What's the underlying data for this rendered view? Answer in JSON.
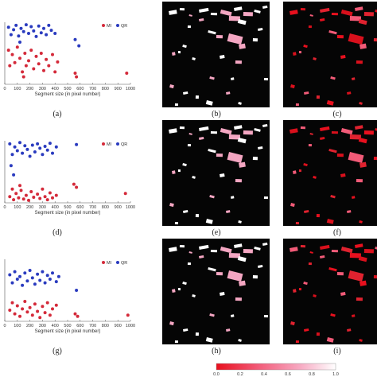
{
  "captions": [
    "(a)",
    "(b)",
    "(c)",
    "(d)",
    "(e)",
    "(f)",
    "(g)",
    "(h)",
    "(i)"
  ],
  "legend": {
    "mi": "MI",
    "qr": "QR"
  },
  "colors": {
    "mi": "#d42a3a",
    "qr": "#2a3bbf",
    "map_bg": "#050505"
  },
  "colorbar": {
    "ticks": [
      "0.0",
      "0.2",
      "0.4",
      "0.6",
      "0.8",
      "1.0"
    ],
    "colors": [
      "#e8101e",
      "#f25b78",
      "#f7a9c2",
      "#ffffff"
    ]
  },
  "chart_data": [
    {
      "type": "scatter",
      "xlabel": "Segment size (in pixel number)",
      "xticks": [
        "0",
        "100",
        "200",
        "300",
        "400",
        "500",
        "600",
        "700",
        "800",
        "900",
        "1000"
      ],
      "xlim": [
        0,
        1000
      ],
      "ylim": [
        0,
        1
      ],
      "series": [
        {
          "name": "MI",
          "points": [
            [
              30,
              0.55
            ],
            [
              60,
              0.48
            ],
            [
              80,
              0.35
            ],
            [
              100,
              0.6
            ],
            [
              120,
              0.42
            ],
            [
              140,
              0.2
            ],
            [
              160,
              0.5
            ],
            [
              170,
              0.3
            ],
            [
              190,
              0.38
            ],
            [
              210,
              0.55
            ],
            [
              230,
              0.25
            ],
            [
              250,
              0.45
            ],
            [
              270,
              0.33
            ],
            [
              290,
              0.5
            ],
            [
              310,
              0.22
            ],
            [
              330,
              0.4
            ],
            [
              350,
              0.3
            ],
            [
              380,
              0.48
            ],
            [
              400,
              0.2
            ],
            [
              420,
              0.36
            ],
            [
              560,
              0.18
            ],
            [
              570,
              0.12
            ],
            [
              970,
              0.18
            ],
            [
              40,
              0.3
            ],
            [
              150,
              0.12
            ]
          ]
        },
        {
          "name": "QR",
          "points": [
            [
              30,
              0.92
            ],
            [
              50,
              0.8
            ],
            [
              70,
              0.88
            ],
            [
              90,
              0.95
            ],
            [
              110,
              0.78
            ],
            [
              130,
              0.9
            ],
            [
              150,
              0.85
            ],
            [
              170,
              0.96
            ],
            [
              190,
              0.82
            ],
            [
              210,
              0.93
            ],
            [
              230,
              0.86
            ],
            [
              250,
              0.77
            ],
            [
              270,
              0.94
            ],
            [
              290,
              0.83
            ],
            [
              310,
              0.9
            ],
            [
              330,
              0.8
            ],
            [
              350,
              0.95
            ],
            [
              370,
              0.87
            ],
            [
              400,
              0.82
            ],
            [
              590,
              0.62
            ],
            [
              560,
              0.72
            ],
            [
              120,
              0.68
            ]
          ]
        }
      ]
    },
    {
      "type": "scatter",
      "xlabel": "Segment size (in pixel number)",
      "xticks": [
        "0",
        "100",
        "200",
        "300",
        "400",
        "500",
        "600",
        "700",
        "800",
        "900",
        "1000"
      ],
      "xlim": [
        0,
        1000
      ],
      "ylim": [
        0,
        1
      ],
      "series": [
        {
          "name": "MI",
          "points": [
            [
              40,
              0.1
            ],
            [
              70,
              0.05
            ],
            [
              90,
              0.15
            ],
            [
              110,
              0.08
            ],
            [
              130,
              0.2
            ],
            [
              150,
              0.06
            ],
            [
              170,
              0.12
            ],
            [
              190,
              0.04
            ],
            [
              210,
              0.18
            ],
            [
              230,
              0.09
            ],
            [
              260,
              0.14
            ],
            [
              280,
              0.07
            ],
            [
              300,
              0.22
            ],
            [
              320,
              0.1
            ],
            [
              340,
              0.05
            ],
            [
              360,
              0.16
            ],
            [
              380,
              0.08
            ],
            [
              410,
              0.12
            ],
            [
              550,
              0.3
            ],
            [
              570,
              0.25
            ],
            [
              960,
              0.15
            ],
            [
              120,
              0.28
            ],
            [
              60,
              0.22
            ]
          ]
        },
        {
          "name": "QR",
          "points": [
            [
              40,
              0.95
            ],
            [
              60,
              0.78
            ],
            [
              80,
              0.9
            ],
            [
              100,
              0.84
            ],
            [
              120,
              0.97
            ],
            [
              140,
              0.8
            ],
            [
              160,
              0.92
            ],
            [
              180,
              0.86
            ],
            [
              200,
              0.75
            ],
            [
              220,
              0.93
            ],
            [
              240,
              0.82
            ],
            [
              260,
              0.95
            ],
            [
              280,
              0.88
            ],
            [
              300,
              0.78
            ],
            [
              320,
              0.91
            ],
            [
              340,
              0.85
            ],
            [
              360,
              0.96
            ],
            [
              380,
              0.8
            ],
            [
              410,
              0.9
            ],
            [
              570,
              0.94
            ],
            [
              50,
              0.6
            ],
            [
              70,
              0.45
            ]
          ]
        }
      ]
    },
    {
      "type": "scatter",
      "xlabel": "Segment size (in pixel number)",
      "xticks": [
        "0",
        "100",
        "200",
        "300",
        "400",
        "500",
        "600",
        "700",
        "800",
        "900",
        "1000"
      ],
      "xlim": [
        0,
        1000
      ],
      "ylim": [
        0,
        1
      ],
      "series": [
        {
          "name": "MI",
          "points": [
            [
              40,
              0.18
            ],
            [
              60,
              0.3
            ],
            [
              80,
              0.12
            ],
            [
              100,
              0.25
            ],
            [
              120,
              0.08
            ],
            [
              140,
              0.2
            ],
            [
              160,
              0.32
            ],
            [
              180,
              0.15
            ],
            [
              200,
              0.22
            ],
            [
              220,
              0.1
            ],
            [
              240,
              0.28
            ],
            [
              260,
              0.16
            ],
            [
              280,
              0.06
            ],
            [
              300,
              0.24
            ],
            [
              320,
              0.14
            ],
            [
              340,
              0.3
            ],
            [
              360,
              0.1
            ],
            [
              380,
              0.2
            ],
            [
              410,
              0.26
            ],
            [
              560,
              0.12
            ],
            [
              580,
              0.08
            ],
            [
              980,
              0.1
            ]
          ]
        },
        {
          "name": "QR",
          "points": [
            [
              40,
              0.75
            ],
            [
              60,
              0.62
            ],
            [
              80,
              0.8
            ],
            [
              100,
              0.68
            ],
            [
              120,
              0.72
            ],
            [
              140,
              0.58
            ],
            [
              160,
              0.78
            ],
            [
              180,
              0.65
            ],
            [
              200,
              0.82
            ],
            [
              220,
              0.7
            ],
            [
              240,
              0.6
            ],
            [
              260,
              0.76
            ],
            [
              280,
              0.66
            ],
            [
              300,
              0.8
            ],
            [
              320,
              0.62
            ],
            [
              340,
              0.74
            ],
            [
              360,
              0.68
            ],
            [
              380,
              0.78
            ],
            [
              410,
              0.64
            ],
            [
              570,
              0.5
            ],
            [
              430,
              0.72
            ]
          ]
        }
      ]
    }
  ],
  "maps": {
    "segments": [
      [
        212,
        14,
        10,
        5,
        "w"
      ],
      [
        226,
        10,
        6,
        3,
        "w"
      ],
      [
        238,
        18,
        4,
        2,
        "p"
      ],
      [
        250,
        12,
        12,
        4,
        "w"
      ],
      [
        265,
        16,
        8,
        3,
        "w"
      ],
      [
        278,
        12,
        14,
        5,
        "p"
      ],
      [
        294,
        10,
        10,
        4,
        "w"
      ],
      [
        306,
        15,
        12,
        5,
        "p"
      ],
      [
        320,
        12,
        8,
        3,
        "w"
      ],
      [
        330,
        8,
        6,
        3,
        "w"
      ],
      [
        288,
        20,
        14,
        6,
        "p"
      ],
      [
        300,
        24,
        10,
        5,
        "w"
      ],
      [
        250,
        24,
        6,
        3,
        "p"
      ],
      [
        236,
        32,
        4,
        3,
        "w"
      ],
      [
        262,
        38,
        10,
        3,
        "w"
      ],
      [
        324,
        36,
        6,
        3,
        "w"
      ],
      [
        272,
        44,
        8,
        4,
        "p"
      ],
      [
        288,
        42,
        18,
        10,
        "p"
      ],
      [
        300,
        56,
        8,
        6,
        "p"
      ],
      [
        318,
        48,
        6,
        4,
        "w"
      ],
      [
        230,
        56,
        5,
        3,
        "w"
      ],
      [
        216,
        66,
        4,
        4,
        "p"
      ],
      [
        224,
        64,
        3,
        3,
        "w"
      ],
      [
        242,
        72,
        4,
        3,
        "w"
      ],
      [
        276,
        70,
        6,
        4,
        "w"
      ],
      [
        296,
        76,
        8,
        4,
        "p"
      ],
      [
        264,
        96,
        6,
        3,
        "p"
      ],
      [
        290,
        98,
        4,
        3,
        "w"
      ],
      [
        332,
        98,
        5,
        3,
        "w"
      ],
      [
        214,
        106,
        5,
        4,
        "p"
      ],
      [
        230,
        116,
        6,
        3,
        "w"
      ],
      [
        246,
        120,
        4,
        4,
        "w"
      ],
      [
        260,
        126,
        8,
        5,
        "w"
      ],
      [
        284,
        116,
        5,
        3,
        "p"
      ],
      [
        220,
        130,
        4,
        3,
        "w"
      ],
      [
        300,
        128,
        4,
        3,
        "w"
      ]
    ]
  }
}
